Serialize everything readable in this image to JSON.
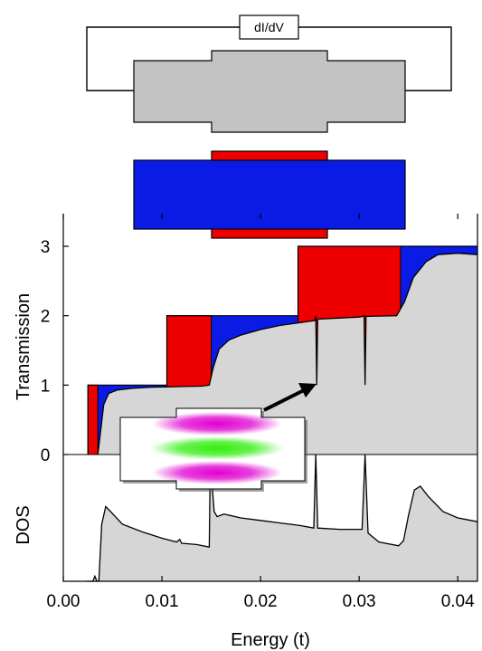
{
  "circuit": {
    "meter_label": "dI/dV"
  },
  "colors": {
    "device_gray": "#c3c3c3",
    "fill_gray": "#d6d6d6",
    "red": "#ee0000",
    "blue": "#0a1be6",
    "magenta": "#e000d0",
    "green": "#33ee11"
  },
  "chart_data": [
    {
      "type": "area",
      "ylabel": "Transmission",
      "xlim": [
        0.0,
        0.042
      ],
      "ylim": [
        0,
        3.35
      ],
      "yticks": [
        "0",
        "1",
        "2",
        "3"
      ],
      "steps": [
        {
          "x_start": 0.0025,
          "x_end": 0.0035,
          "from": 0,
          "to": 1
        },
        {
          "x_start": 0.0105,
          "x_end": 0.015,
          "from": 1,
          "to": 2
        },
        {
          "x_start": 0.0238,
          "x_end": 0.0342,
          "from": 2,
          "to": 3
        }
      ],
      "curve": [
        [
          0.0035,
          0
        ],
        [
          0.0038,
          0.35
        ],
        [
          0.0041,
          0.72
        ],
        [
          0.0046,
          0.88
        ],
        [
          0.0055,
          0.93
        ],
        [
          0.007,
          0.955
        ],
        [
          0.009,
          0.97
        ],
        [
          0.0105,
          0.975
        ],
        [
          0.012,
          0.98
        ],
        [
          0.014,
          0.985
        ],
        [
          0.0148,
          1.0
        ],
        [
          0.0152,
          1.25
        ],
        [
          0.0158,
          1.52
        ],
        [
          0.0168,
          1.65
        ],
        [
          0.018,
          1.72
        ],
        [
          0.02,
          1.8
        ],
        [
          0.022,
          1.86
        ],
        [
          0.024,
          1.9
        ],
        [
          0.0255,
          1.93
        ],
        [
          0.0256,
          2.0
        ],
        [
          0.0257,
          1.0
        ],
        [
          0.0258,
          1.95
        ],
        [
          0.03,
          1.98
        ],
        [
          0.0304,
          1.99
        ],
        [
          0.0305,
          2.0
        ],
        [
          0.0306,
          1.0
        ],
        [
          0.0307,
          1.99
        ],
        [
          0.0338,
          2.0
        ],
        [
          0.0346,
          2.2
        ],
        [
          0.0355,
          2.55
        ],
        [
          0.0368,
          2.78
        ],
        [
          0.038,
          2.88
        ],
        [
          0.04,
          2.9
        ],
        [
          0.042,
          2.88
        ]
      ]
    },
    {
      "type": "area",
      "ylabel": "DOS",
      "xlabel": "Energy (t)",
      "xlim": [
        0.0,
        0.042
      ],
      "xticks": [
        "0.00",
        "0.01",
        "0.02",
        "0.03",
        "0.04"
      ],
      "curve": [
        [
          0.0024,
          0.0
        ],
        [
          0.003,
          0.0
        ],
        [
          0.0032,
          0.04
        ],
        [
          0.0034,
          0.0
        ],
        [
          0.0036,
          0.0
        ],
        [
          0.0039,
          0.45
        ],
        [
          0.0043,
          0.59
        ],
        [
          0.0048,
          0.55
        ],
        [
          0.006,
          0.45
        ],
        [
          0.008,
          0.39
        ],
        [
          0.01,
          0.34
        ],
        [
          0.0115,
          0.31
        ],
        [
          0.0118,
          0.33
        ],
        [
          0.012,
          0.3
        ],
        [
          0.0135,
          0.29
        ],
        [
          0.0148,
          0.27
        ],
        [
          0.0149,
          0.95
        ],
        [
          0.0151,
          0.75
        ],
        [
          0.0153,
          0.55
        ],
        [
          0.0156,
          0.51
        ],
        [
          0.0163,
          0.53
        ],
        [
          0.018,
          0.5
        ],
        [
          0.02,
          0.48
        ],
        [
          0.022,
          0.46
        ],
        [
          0.024,
          0.44
        ],
        [
          0.0254,
          0.42
        ],
        [
          0.0256,
          1.0
        ],
        [
          0.0258,
          0.42
        ],
        [
          0.028,
          0.41
        ],
        [
          0.0303,
          0.41
        ],
        [
          0.0306,
          1.0
        ],
        [
          0.0309,
          0.38
        ],
        [
          0.032,
          0.31
        ],
        [
          0.034,
          0.28
        ],
        [
          0.0345,
          0.32
        ],
        [
          0.035,
          0.52
        ],
        [
          0.0356,
          0.72
        ],
        [
          0.0362,
          0.75
        ],
        [
          0.037,
          0.67
        ],
        [
          0.0385,
          0.55
        ],
        [
          0.04,
          0.5
        ],
        [
          0.042,
          0.47
        ]
      ]
    }
  ]
}
